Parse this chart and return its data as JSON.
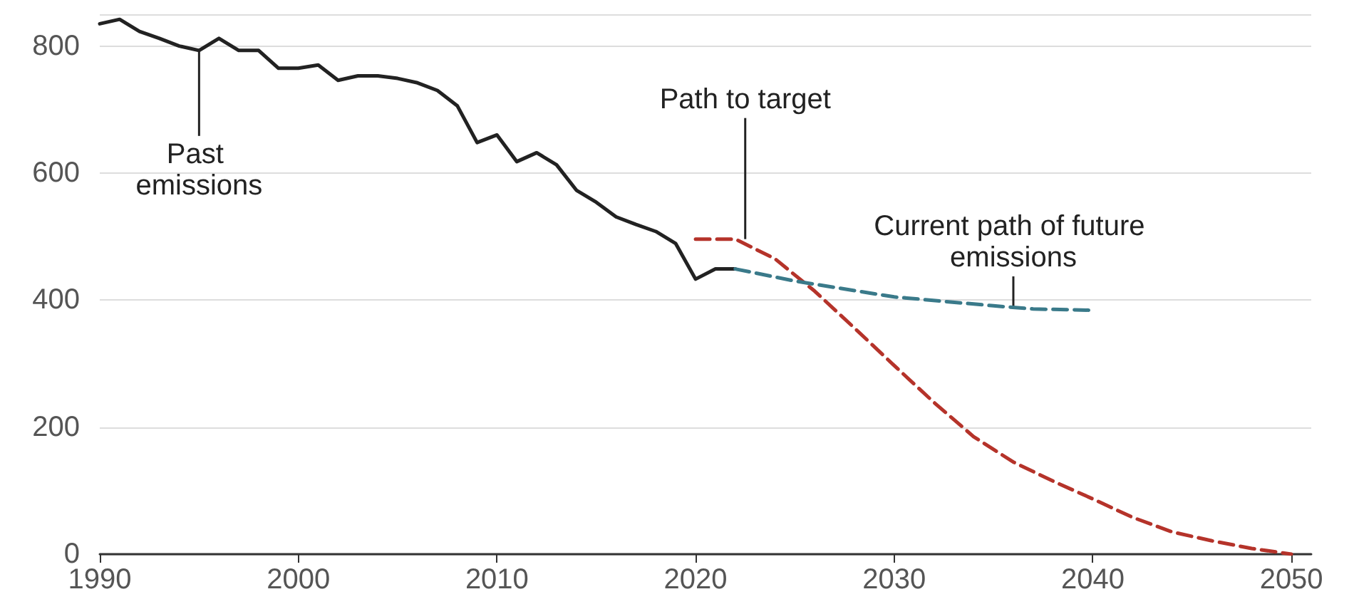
{
  "chart_data": {
    "type": "line",
    "xlim": [
      1990,
      2051
    ],
    "xticks": [
      1990,
      2000,
      2010,
      2020,
      2030,
      2040,
      2050
    ],
    "ylim": [
      0,
      850
    ],
    "yticks": [
      0,
      200,
      400,
      600,
      800
    ],
    "grid": "y",
    "marker": "none",
    "series": [
      {
        "color": "#222222",
        "line_style": "solid",
        "x": [
          1990,
          1991,
          1992,
          1993,
          1994,
          1995,
          1996,
          1997,
          1998,
          1999,
          2000,
          2001,
          2002,
          2003,
          2004,
          2005,
          2006,
          2007,
          2008,
          2009,
          2010,
          2011,
          2012,
          2013,
          2014,
          2015,
          2016,
          2017,
          2018,
          2019,
          2020,
          2021,
          2022
        ],
        "values": [
          835,
          842,
          823,
          812,
          800,
          793,
          812,
          793,
          793,
          765,
          765,
          770,
          746,
          753,
          753,
          749,
          742,
          730,
          706,
          648,
          660,
          618,
          632,
          613,
          573,
          554,
          531,
          519,
          508,
          489,
          433,
          449,
          449
        ]
      },
      {
        "color": "#b5332a",
        "line_style": "dashed",
        "x": [
          2020,
          2022,
          2024,
          2026,
          2028,
          2030,
          2032,
          2034,
          2036,
          2038,
          2040,
          2042,
          2044,
          2046,
          2048,
          2050
        ],
        "values": [
          496,
          496,
          465,
          414,
          356,
          297,
          239,
          185,
          145,
          115,
          87,
          58,
          35,
          21,
          9,
          0
        ]
      },
      {
        "color": "#3a7a8a",
        "line_style": "dashed",
        "x": [
          2022,
          2025,
          2030,
          2035,
          2037,
          2040
        ],
        "values": [
          449,
          430,
          405,
          391,
          386,
          384
        ]
      }
    ],
    "annotations": [
      {
        "text": "Past emissions",
        "x": 1995,
        "y": 793
      },
      {
        "text": "Path to target",
        "x": 2022.5,
        "y": 496
      },
      {
        "text": "Current path of future emissions",
        "x": 2036,
        "y": 388
      }
    ]
  }
}
